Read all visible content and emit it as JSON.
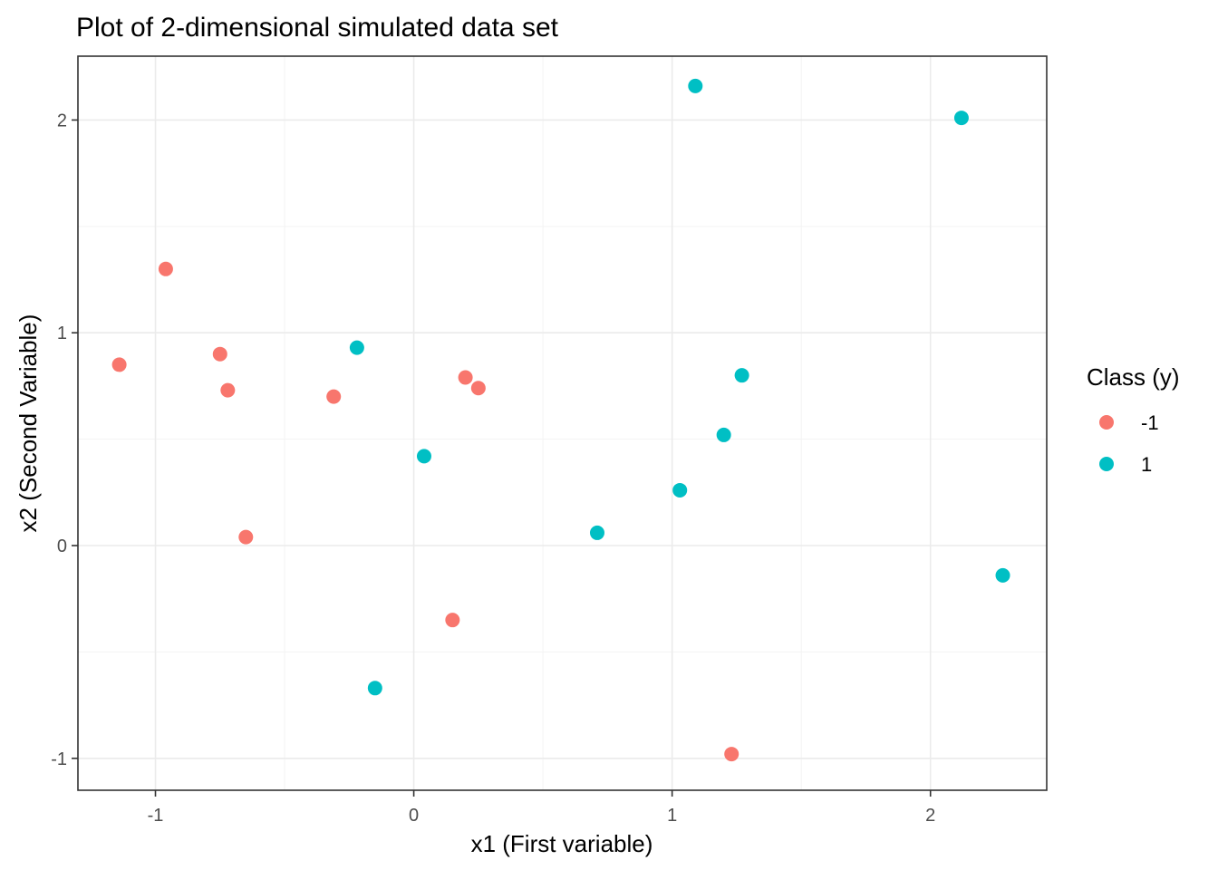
{
  "chart_data": {
    "type": "scatter",
    "title": "Plot of 2-dimensional simulated data set",
    "xlabel": "x1 (First variable)",
    "ylabel": "x2 (Second Variable)",
    "xlim": [
      -1.3,
      2.45
    ],
    "ylim": [
      -1.15,
      2.3
    ],
    "x_ticks": [
      -1,
      0,
      1,
      2
    ],
    "y_ticks": [
      -1,
      0,
      1,
      2
    ],
    "x_tick_labels": [
      "-1",
      "0",
      "1",
      "2"
    ],
    "y_tick_labels": [
      "-1",
      "0",
      "1",
      "2"
    ],
    "grid": true,
    "legend": {
      "title": "Class (y)",
      "placement": "right",
      "entries": [
        {
          "label": "-1",
          "color": "#F8766D"
        },
        {
          "label": "1",
          "color": "#00BFC4"
        }
      ]
    },
    "series": [
      {
        "name": "-1",
        "color": "#F8766D",
        "points": [
          {
            "x": -1.14,
            "y": 0.85
          },
          {
            "x": -0.96,
            "y": 1.3
          },
          {
            "x": -0.75,
            "y": 0.9
          },
          {
            "x": -0.72,
            "y": 0.73
          },
          {
            "x": -0.65,
            "y": 0.04
          },
          {
            "x": -0.31,
            "y": 0.7
          },
          {
            "x": 0.15,
            "y": -0.35
          },
          {
            "x": 0.2,
            "y": 0.79
          },
          {
            "x": 0.25,
            "y": 0.74
          },
          {
            "x": 1.23,
            "y": -0.98
          }
        ]
      },
      {
        "name": "1",
        "color": "#00BFC4",
        "points": [
          {
            "x": -0.22,
            "y": 0.93
          },
          {
            "x": -0.15,
            "y": -0.67
          },
          {
            "x": 0.04,
            "y": 0.42
          },
          {
            "x": 0.71,
            "y": 0.06
          },
          {
            "x": 1.03,
            "y": 0.26
          },
          {
            "x": 1.09,
            "y": 2.16
          },
          {
            "x": 1.2,
            "y": 0.52
          },
          {
            "x": 1.27,
            "y": 0.8
          },
          {
            "x": 2.12,
            "y": 2.01
          },
          {
            "x": 2.28,
            "y": -0.14
          }
        ]
      }
    ]
  }
}
